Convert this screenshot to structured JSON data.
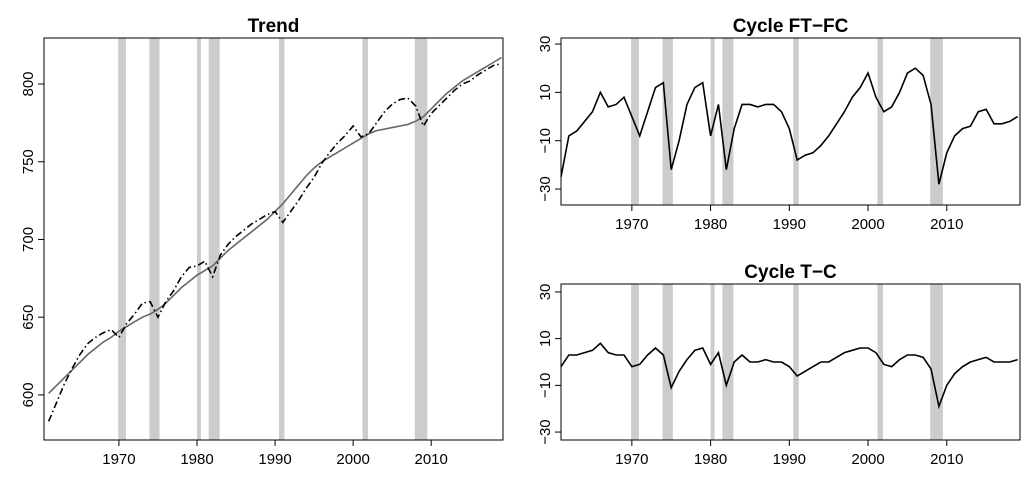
{
  "chart_data": [
    {
      "type": "line",
      "title": "Trend",
      "x": [
        1961,
        1962,
        1963,
        1964,
        1965,
        1966,
        1967,
        1968,
        1969,
        1970,
        1971,
        1972,
        1973,
        1974,
        1975,
        1976,
        1977,
        1978,
        1979,
        1980,
        1981,
        1982,
        1983,
        1984,
        1985,
        1986,
        1987,
        1988,
        1989,
        1990,
        1991,
        1992,
        1993,
        1994,
        1995,
        1996,
        1997,
        1998,
        1999,
        2000,
        2001,
        2002,
        2003,
        2004,
        2005,
        2006,
        2007,
        2008,
        2009,
        2010,
        2011,
        2012,
        2013,
        2014,
        2015,
        2016,
        2017,
        2018,
        2019
      ],
      "series": [
        {
          "color": "#666666",
          "linetype": "solid",
          "values": [
            601,
            606,
            611,
            616,
            621,
            626,
            630,
            634,
            637,
            641,
            644,
            647,
            650,
            652,
            655,
            659,
            664,
            669,
            673,
            677,
            680,
            683,
            688,
            693,
            697,
            701,
            705,
            709,
            713,
            718,
            723,
            729,
            735,
            741,
            746,
            750,
            753,
            756,
            759,
            762,
            765,
            768,
            770,
            771,
            772,
            773,
            774,
            776,
            779,
            784,
            789,
            794,
            798,
            802,
            805,
            808,
            811,
            814,
            817
          ]
        },
        {
          "color": "#000000",
          "linetype": "dotdash",
          "values": [
            583,
            595,
            607,
            617,
            626,
            633,
            637,
            640,
            642,
            637,
            646,
            652,
            659,
            660,
            650,
            660,
            667,
            676,
            682,
            683,
            686,
            676,
            690,
            697,
            702,
            706,
            710,
            713,
            716,
            718,
            711,
            718,
            725,
            733,
            740,
            749,
            756,
            762,
            767,
            773,
            766,
            768,
            775,
            782,
            787,
            790,
            791,
            786,
            773,
            781,
            786,
            791,
            796,
            800,
            802,
            806,
            809,
            812,
            813
          ]
        }
      ],
      "recessions": [
        [
          1969.9,
          1970.9
        ],
        [
          1973.9,
          1975.2
        ],
        [
          1980.0,
          1980.5
        ],
        [
          1981.5,
          1982.9
        ],
        [
          1990.5,
          1991.2
        ],
        [
          2001.2,
          2001.9
        ],
        [
          2007.9,
          2009.5
        ]
      ],
      "recession_color": "#cccccc",
      "xlim": [
        1960.4,
        2019.2
      ],
      "ylim": [
        571,
        829.6
      ],
      "xticks": [
        1970,
        1980,
        1990,
        2000,
        2010
      ],
      "yticks": [
        600,
        650,
        700,
        750,
        800
      ]
    },
    {
      "type": "line",
      "title": "Cycle FT−FC",
      "x": [
        1961,
        1962,
        1963,
        1964,
        1965,
        1966,
        1967,
        1968,
        1969,
        1970,
        1971,
        1972,
        1973,
        1974,
        1975,
        1976,
        1977,
        1978,
        1979,
        1980,
        1981,
        1982,
        1983,
        1984,
        1985,
        1986,
        1987,
        1988,
        1989,
        1990,
        1991,
        1992,
        1993,
        1994,
        1995,
        1996,
        1997,
        1998,
        1999,
        2000,
        2001,
        2002,
        2003,
        2004,
        2005,
        2006,
        2007,
        2008,
        2009,
        2010,
        2011,
        2012,
        2013,
        2014,
        2015,
        2016,
        2017,
        2018,
        2019
      ],
      "series": [
        {
          "color": "#000000",
          "linetype": "solid",
          "values": [
            -25,
            -8,
            -6,
            -2,
            2,
            10,
            4,
            5,
            8,
            0,
            -8,
            2,
            12,
            14,
            -22,
            -10,
            5,
            12,
            14,
            -8,
            5,
            -22,
            -5,
            5,
            5,
            4,
            5,
            5,
            2,
            -5,
            -18,
            -16,
            -15,
            -12,
            -8,
            -3,
            2,
            8,
            12,
            18,
            8,
            2,
            4,
            10,
            18,
            20,
            17,
            5,
            -28,
            -15,
            -8,
            -5,
            -4,
            2,
            3,
            -3,
            -3,
            -2,
            0
          ]
        }
      ],
      "recessions": [
        [
          1969.9,
          1970.9
        ],
        [
          1973.9,
          1975.2
        ],
        [
          1980.0,
          1980.5
        ],
        [
          1981.5,
          1982.9
        ],
        [
          1990.5,
          1991.2
        ],
        [
          2001.2,
          2001.9
        ],
        [
          2007.9,
          2009.5
        ]
      ],
      "recession_color": "#cccccc",
      "xlim": [
        1961,
        2019.3
      ],
      "ylim": [
        -36.6,
        32.5
      ],
      "xticks": [
        1970,
        1980,
        1990,
        2000,
        2010
      ],
      "yticks": [
        {
          "value": -30,
          "label": "−30"
        },
        {
          "value": -10,
          "label": "−10"
        },
        10,
        30
      ]
    },
    {
      "type": "line",
      "title": "Cycle T−C",
      "x": [
        1961,
        1962,
        1963,
        1964,
        1965,
        1966,
        1967,
        1968,
        1969,
        1970,
        1971,
        1972,
        1973,
        1974,
        1975,
        1976,
        1977,
        1978,
        1979,
        1980,
        1981,
        1982,
        1983,
        1984,
        1985,
        1986,
        1987,
        1988,
        1989,
        1990,
        1991,
        1992,
        1993,
        1994,
        1995,
        1996,
        1997,
        1998,
        1999,
        2000,
        2001,
        2002,
        2003,
        2004,
        2005,
        2006,
        2007,
        2008,
        2009,
        2010,
        2011,
        2012,
        2013,
        2014,
        2015,
        2016,
        2017,
        2018,
        2019
      ],
      "series": [
        {
          "color": "#000000",
          "linetype": "solid",
          "values": [
            -2,
            3,
            3,
            4,
            5,
            8,
            4,
            3,
            3,
            -2,
            -1,
            3,
            6,
            3,
            -11,
            -4,
            1,
            5,
            6,
            -1,
            4,
            -10,
            0,
            3,
            0,
            0,
            1,
            0,
            0,
            -2,
            -6,
            -4,
            -2,
            0,
            0,
            2,
            4,
            5,
            6,
            6,
            4,
            -1,
            -2,
            1,
            3,
            3,
            2,
            -3,
            -19,
            -10,
            -5,
            -2,
            0,
            1,
            2,
            0,
            0,
            0,
            1
          ]
        }
      ],
      "recessions": [
        [
          1969.9,
          1970.9
        ],
        [
          1973.9,
          1975.2
        ],
        [
          1980.0,
          1980.5
        ],
        [
          1981.5,
          1982.9
        ],
        [
          1990.5,
          1991.2
        ],
        [
          2001.2,
          2001.9
        ],
        [
          2007.9,
          2009.5
        ]
      ],
      "recession_color": "#cccccc",
      "xlim": [
        1961,
        2019.3
      ],
      "ylim": [
        -33.4,
        33.4
      ],
      "xticks": [
        1970,
        1980,
        1990,
        2000,
        2010
      ],
      "yticks": [
        {
          "value": -30,
          "label": "−30"
        },
        {
          "value": -10,
          "label": "−10"
        },
        10,
        30
      ]
    }
  ]
}
